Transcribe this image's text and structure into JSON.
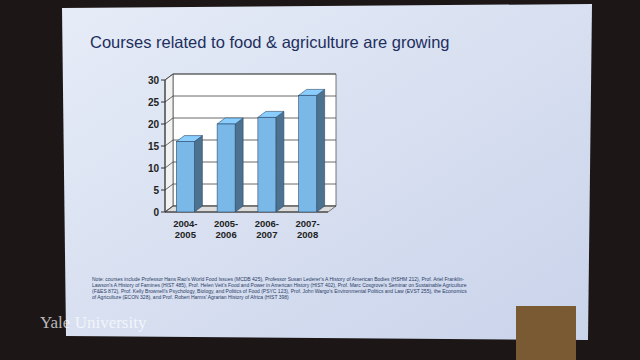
{
  "chart_data": {
    "type": "bar",
    "title": "Courses related to food & agriculture are growing",
    "categories": [
      "2004-2005",
      "2005-2006",
      "2006-2007",
      "2007-2008"
    ],
    "values": [
      16,
      20,
      21.5,
      26.5
    ],
    "color": "#7ab8e8",
    "ylim": [
      0,
      30
    ],
    "yticks": [
      0,
      5,
      10,
      15,
      20,
      25,
      30
    ],
    "grid": true,
    "annotations": [
      "Note: courses include Professor Hans Rao's World Food Issues (MCDB 425), Professor Susan Lederer's A History of American Bodies (HSHM 212), Prof. Ariel Franklin-Lawson's A History of Famines (HIST 485), Prof. Helen Veit's Food and Power in American History (HIST 402), Prof. Marc Cosgrove's Seminar on Sustainable Agriculture (F&ES 872), Prof. Kelly Brownell's Psychology, Biology, and Politics of Food (PSYC 123), Prof. John Wargo's Environmental Politics and Law (EVST 255), the Economics of Agriculture (ECON 328), and Prof. Robert Harms' Agrarian History of Africa (HIST 398)",
      "Yale University"
    ]
  }
}
